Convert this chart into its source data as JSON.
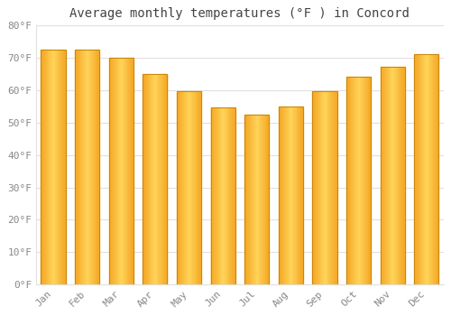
{
  "months": [
    "Jan",
    "Feb",
    "Mar",
    "Apr",
    "May",
    "Jun",
    "Jul",
    "Aug",
    "Sep",
    "Oct",
    "Nov",
    "Dec"
  ],
  "values": [
    72.5,
    72.5,
    70,
    65,
    59.5,
    54.5,
    52.5,
    55,
    59.5,
    64,
    67,
    71
  ],
  "title": "Average monthly temperatures (°F ) in Concord",
  "bar_color_left": "#F5A623",
  "bar_color_center": "#FFD55A",
  "bar_color_right": "#F5A000",
  "bar_edge_color": "#C8860A",
  "ylim": [
    0,
    80
  ],
  "yticks": [
    0,
    10,
    20,
    30,
    40,
    50,
    60,
    70,
    80
  ],
  "ytick_labels": [
    "0°F",
    "10°F",
    "20°F",
    "30°F",
    "40°F",
    "50°F",
    "60°F",
    "70°F",
    "80°F"
  ],
  "background_color": "#FFFFFF",
  "grid_color": "#E0E0E0",
  "title_fontsize": 10,
  "tick_fontsize": 8,
  "tick_color": "#888888",
  "title_color": "#444444"
}
